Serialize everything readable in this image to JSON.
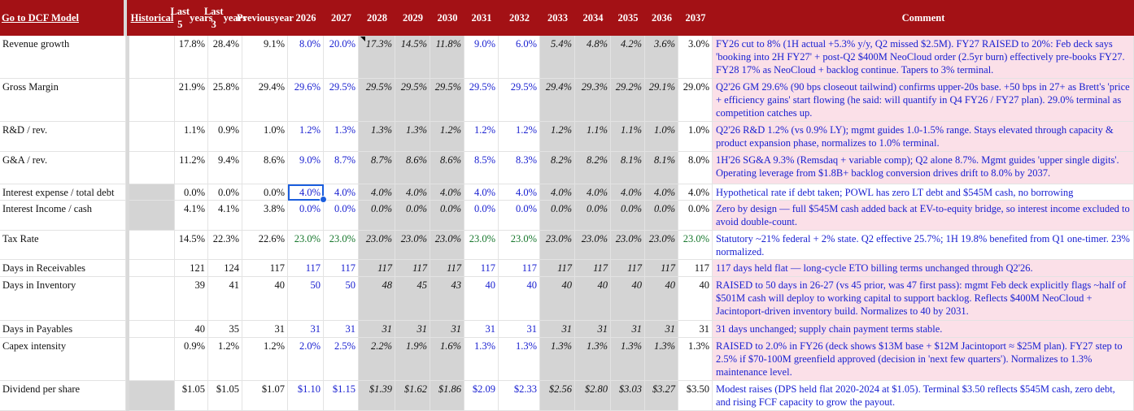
{
  "header": {
    "go_link": "Go to DCF Model",
    "historical": "Historical",
    "last5": [
      "Last 5",
      "years"
    ],
    "last3": [
      "Last 3",
      "years"
    ],
    "prev": [
      "Previous",
      "year"
    ],
    "years": [
      "2026",
      "2027",
      "2028",
      "2029",
      "2030",
      "2031",
      "2032",
      "2033",
      "2034",
      "2035",
      "2036",
      "2037"
    ],
    "comment": "Comment"
  },
  "rows": [
    {
      "label": "Revenue growth",
      "hist": [
        "17.8%",
        "28.4%",
        "9.1%"
      ],
      "proj": [
        "8.0%",
        "20.0%",
        "17.3%",
        "14.5%",
        "11.8%",
        "9.0%",
        "6.0%",
        "5.4%",
        "4.8%",
        "4.2%",
        "3.6%",
        "3.0%"
      ],
      "comment": "FY26 cut to 8% (1H actual +5.3% y/y, Q2 missed $2.5M). FY27 RAISED to 20%: Feb deck says 'booking into 2H FY27' + post-Q2 $400M NeoCloud order (2.5yr burn) effectively pre-books FY27. FY28 17% as NeoCloud + backlog continue. Tapers to 3% terminal."
    },
    {
      "label": "Gross Margin",
      "hist": [
        "21.9%",
        "25.8%",
        "29.4%"
      ],
      "proj": [
        "29.6%",
        "29.5%",
        "29.5%",
        "29.5%",
        "29.5%",
        "29.5%",
        "29.5%",
        "29.4%",
        "29.3%",
        "29.2%",
        "29.1%",
        "29.0%"
      ],
      "comment": "Q2'26 GM 29.6% (90 bps closeout tailwind) confirms upper-20s base. +50 bps in 27+ as Brett's 'price + efficiency gains' start flowing (he said: will quantify in Q4 FY26 / FY27 plan). 29.0% terminal as competition catches up."
    },
    {
      "label": "R&D / rev.",
      "hist": [
        "1.1%",
        "0.9%",
        "1.0%"
      ],
      "proj": [
        "1.2%",
        "1.3%",
        "1.3%",
        "1.3%",
        "1.2%",
        "1.2%",
        "1.2%",
        "1.2%",
        "1.1%",
        "1.1%",
        "1.0%",
        "1.0%"
      ],
      "comment": "Q2'26 R&D 1.2% (vs 0.9% LY); mgmt guides 1.0-1.5% range. Stays elevated through capacity & product expansion phase, normalizes to 1.0% terminal."
    },
    {
      "label": "G&A / rev.",
      "hist": [
        "11.2%",
        "9.4%",
        "8.6%"
      ],
      "proj": [
        "9.0%",
        "8.7%",
        "8.7%",
        "8.6%",
        "8.6%",
        "8.5%",
        "8.3%",
        "8.2%",
        "8.2%",
        "8.1%",
        "8.1%",
        "8.0%"
      ],
      "comment": "1H'26 SG&A 9.3% (Remsdaq + variable comp); Q2 alone 8.7%. Mgmt guides 'upper single digits'. Operating leverage from $1.8B+ backlog conversion drives drift to 8.0% by 2037."
    },
    {
      "label": "Interest expense / total debt",
      "hist": [
        "0.0%",
        "0.0%",
        "0.0%"
      ],
      "proj": [
        "4.0%",
        "4.0%",
        "4.0%",
        "4.0%",
        "4.0%",
        "4.0%",
        "4.0%",
        "4.0%",
        "4.0%",
        "4.0%",
        "4.0%",
        "4.0%"
      ],
      "comment": "Hypothetical rate if debt taken; POWL has zero LT debt and $545M cash, no borrowing"
    },
    {
      "label": "Interest Income / cash",
      "hist": [
        "4.1%",
        "4.1%",
        "3.8%"
      ],
      "proj": [
        "0.0%",
        "0.0%",
        "0.0%",
        "0.0%",
        "0.0%",
        "0.0%",
        "0.0%",
        "0.0%",
        "0.0%",
        "0.0%",
        "0.0%",
        "0.0%"
      ],
      "comment": "Zero by design — full $545M cash added back at EV-to-equity bridge, so interest income excluded to avoid double-count."
    },
    {
      "label": "Tax Rate",
      "hist": [
        "14.5%",
        "22.3%",
        "22.6%"
      ],
      "proj": [
        "23.0%",
        "23.0%",
        "23.0%",
        "23.0%",
        "23.0%",
        "23.0%",
        "23.0%",
        "23.0%",
        "23.0%",
        "23.0%",
        "23.0%",
        "23.0%"
      ],
      "comment": "Statutory ~21% federal + 2% state. Q2 effective 25.7%; 1H 19.8% benefited from Q1 one-timer. 23% normalized."
    },
    {
      "label": "Days in Receivables",
      "hist": [
        "121",
        "124",
        "117"
      ],
      "proj": [
        "117",
        "117",
        "117",
        "117",
        "117",
        "117",
        "117",
        "117",
        "117",
        "117",
        "117",
        "117"
      ],
      "comment": "117 days held flat — long-cycle ETO billing terms unchanged through Q2'26."
    },
    {
      "label": "Days in Inventory",
      "hist": [
        "39",
        "41",
        "40"
      ],
      "proj": [
        "50",
        "50",
        "48",
        "45",
        "43",
        "40",
        "40",
        "40",
        "40",
        "40",
        "40",
        "40"
      ],
      "comment": "RAISED to 50 days in 26-27 (vs 45 prior, was 47 first pass): mgmt Feb deck explicitly flags ~half of $501M cash will deploy to working capital to support backlog. Reflects $400M NeoCloud + Jacintoport-driven inventory build. Normalizes to 40 by 2031."
    },
    {
      "label": "Days in Payables",
      "hist": [
        "40",
        "35",
        "31"
      ],
      "proj": [
        "31",
        "31",
        "31",
        "31",
        "31",
        "31",
        "31",
        "31",
        "31",
        "31",
        "31",
        "31"
      ],
      "comment": "31 days unchanged; supply chain payment terms stable."
    },
    {
      "label": "Capex intensity",
      "hist": [
        "0.9%",
        "1.2%",
        "1.2%"
      ],
      "proj": [
        "2.0%",
        "2.5%",
        "2.2%",
        "1.9%",
        "1.6%",
        "1.3%",
        "1.3%",
        "1.3%",
        "1.3%",
        "1.3%",
        "1.3%",
        "1.3%"
      ],
      "comment": "RAISED to 2.0% in FY26 (deck shows $13M base + $12M Jacintoport ≈ $25M plan). FY27 step to 2.5% if $70-100M greenfield approved (decision in 'next few quarters'). Normalizes to 1.3% maintenance level."
    },
    {
      "label": "Dividend per share",
      "hist": [
        "$1.05",
        "$1.05",
        "$1.07"
      ],
      "proj": [
        "$1.10",
        "$1.15",
        "$1.39",
        "$1.62",
        "$1.86",
        "$2.09",
        "$2.33",
        "$2.56",
        "$2.80",
        "$3.03",
        "$3.27",
        "$3.50"
      ],
      "comment": "Modest raises (DPS held flat 2020-2024 at $1.05). Terminal $3.50 reflects $545M cash, zero debt, and rising FCF capacity to grow the payout."
    }
  ],
  "colors": {
    "header_bg": "#a31115",
    "input_blue": "#1a21d1",
    "formula_green": "#17772d",
    "grey_fill": "#d4d4d4",
    "comment_pink": "#fbe0e8",
    "selection": "#1b5ede"
  }
}
